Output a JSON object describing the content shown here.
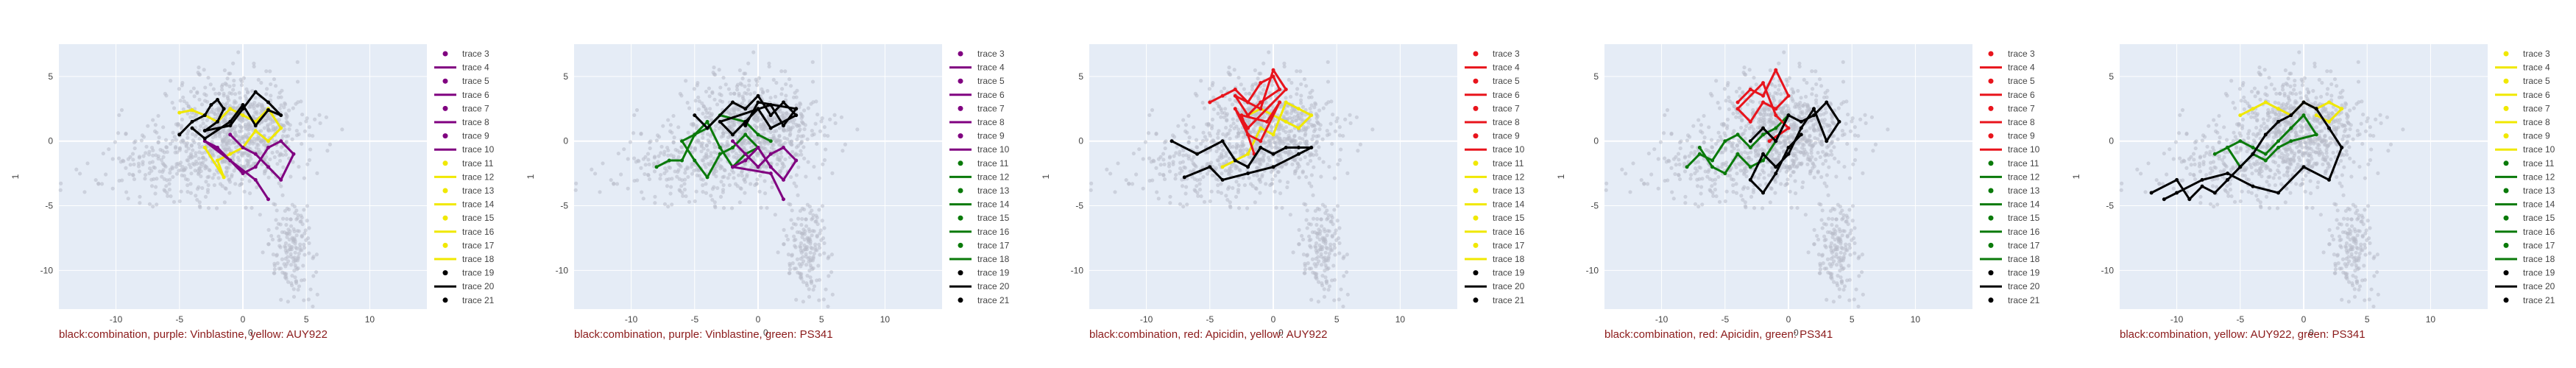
{
  "colors": {
    "combination": "#000000",
    "purple": "#800080",
    "yellow": "#f0e800",
    "green": "#0a7a0a",
    "red": "#e8141c",
    "orange": "#f4a020",
    "background_points": "#b8bcc8",
    "plot_bg": "#e5ecf6"
  },
  "shared": {
    "ylabel": "1",
    "xlabel": "0",
    "xticks": [
      -10,
      -5,
      0,
      5,
      10
    ],
    "yticks": [
      5,
      0,
      -5,
      -10
    ],
    "xlim": [
      -14.5,
      14.5
    ],
    "ylim": [
      -13,
      7.5
    ],
    "legend_entries": [
      {
        "name": "trace 3",
        "kind": "marker"
      },
      {
        "name": "trace 4",
        "kind": "line"
      },
      {
        "name": "trace 5",
        "kind": "marker"
      },
      {
        "name": "trace 6",
        "kind": "line"
      },
      {
        "name": "trace 7",
        "kind": "marker"
      },
      {
        "name": "trace 8",
        "kind": "line"
      },
      {
        "name": "trace 9",
        "kind": "marker"
      },
      {
        "name": "trace 10",
        "kind": "line"
      },
      {
        "name": "trace 11",
        "kind": "marker"
      },
      {
        "name": "trace 12",
        "kind": "line"
      },
      {
        "name": "trace 13",
        "kind": "marker"
      },
      {
        "name": "trace 14",
        "kind": "line"
      },
      {
        "name": "trace 15",
        "kind": "marker"
      },
      {
        "name": "trace 16",
        "kind": "line"
      },
      {
        "name": "trace 17",
        "kind": "marker"
      },
      {
        "name": "trace 18",
        "kind": "line"
      },
      {
        "name": "trace 19",
        "kind": "marker"
      },
      {
        "name": "trace 20",
        "kind": "line"
      },
      {
        "name": "trace 21",
        "kind": "marker"
      }
    ]
  },
  "chart_data": [
    {
      "type": "scatter",
      "caption": "black:combination, purple: Vinblastine, yellow: AUY922",
      "legend_colors": [
        "#800080",
        "#800080",
        "#800080",
        "#800080",
        "#800080",
        "#800080",
        "#800080",
        "#800080",
        "#f0e800",
        "#f0e800",
        "#f0e800",
        "#f0e800",
        "#f0e800",
        "#f0e800",
        "#f0e800",
        "#f0e800",
        "#000000",
        "#000000",
        "#000000"
      ],
      "series": [
        {
          "name": "combination",
          "color": "#000000",
          "x": [
            -5,
            -4,
            -3,
            -2.5,
            -2,
            -1.5,
            -2,
            -3,
            -1,
            0,
            1,
            2,
            3,
            2,
            1,
            0,
            -1,
            -3,
            -4
          ],
          "y": [
            0.5,
            1.5,
            2,
            2.8,
            3.2,
            2.5,
            1.5,
            0.8,
            1.2,
            2.5,
            3.8,
            3,
            2,
            2.4,
            1.2,
            2.8,
            1.5,
            0.2,
            1
          ]
        },
        {
          "name": "Vinblastine",
          "color": "#800080",
          "x": [
            -1,
            0,
            1,
            2,
            3,
            4,
            3,
            2,
            1,
            0,
            -1,
            -2,
            -3,
            1,
            2
          ],
          "y": [
            0.5,
            -0.5,
            -1,
            -2,
            -3,
            -1,
            0,
            -0.5,
            -2,
            -2.5,
            -1.5,
            -0.5,
            0,
            -3,
            -4.5
          ]
        },
        {
          "name": "AUY922",
          "color": "#f0e800",
          "x": [
            -5,
            -4,
            -3,
            -2,
            -1,
            0,
            1,
            2,
            3,
            2,
            1,
            0,
            -1,
            -2,
            -1.5,
            -3
          ],
          "y": [
            2.2,
            2.4,
            2,
            1.5,
            2.5,
            2,
            1.5,
            2.5,
            1,
            0,
            0.8,
            -0.5,
            -1,
            -1.5,
            -2.8,
            -0.5
          ]
        }
      ]
    },
    {
      "type": "scatter",
      "caption": "black:combination, purple: Vinblastine, green: PS341",
      "legend_colors": [
        "#800080",
        "#800080",
        "#800080",
        "#800080",
        "#800080",
        "#800080",
        "#800080",
        "#800080",
        "#0a7a0a",
        "#0a7a0a",
        "#0a7a0a",
        "#0a7a0a",
        "#0a7a0a",
        "#0a7a0a",
        "#0a7a0a",
        "#0a7a0a",
        "#000000",
        "#000000",
        "#000000"
      ],
      "series": [
        {
          "name": "combination",
          "color": "#000000",
          "x": [
            -5,
            -4,
            -2,
            -1,
            0,
            1,
            2,
            3,
            1,
            0,
            -1,
            -2,
            -3,
            1,
            2,
            3,
            0,
            -1
          ],
          "y": [
            2,
            1,
            3,
            2.5,
            3.5,
            2,
            3,
            2,
            1,
            2.5,
            1.5,
            0.5,
            1.5,
            2.8,
            1.2,
            2.5,
            3,
            1.2
          ]
        },
        {
          "name": "Vinblastine",
          "color": "#800080",
          "x": [
            -2,
            -1,
            0,
            1,
            2,
            3,
            2,
            1,
            0,
            -1,
            -2,
            1,
            2
          ],
          "y": [
            0,
            -1,
            -2,
            -1,
            -0.5,
            -1.5,
            -3,
            -2,
            -0.5,
            -1.5,
            -2,
            -2.5,
            -4.5
          ]
        },
        {
          "name": "PS341",
          "color": "#0a7a0a",
          "x": [
            -8,
            -7,
            -6,
            -5,
            -4,
            -3,
            -2,
            -1,
            0,
            -1,
            -2,
            -3,
            -4,
            -5,
            -6,
            -4,
            -3,
            -1,
            0,
            1
          ],
          "y": [
            -2,
            -1.5,
            -1.5,
            0.5,
            1.5,
            -0.5,
            -2,
            -1,
            -0.5,
            0.5,
            -0.5,
            -1,
            -2.8,
            -1.5,
            0,
            1,
            2,
            1.5,
            0.5,
            0
          ]
        }
      ]
    },
    {
      "type": "scatter",
      "caption": "black:combination, red: Apicidin, yellow: AUY922",
      "legend_colors": [
        "#e8141c",
        "#e8141c",
        "#e8141c",
        "#e8141c",
        "#e8141c",
        "#e8141c",
        "#e8141c",
        "#e8141c",
        "#f0e800",
        "#f0e800",
        "#f0e800",
        "#f0e800",
        "#f0e800",
        "#f0e800",
        "#f0e800",
        "#f0e800",
        "#000000",
        "#000000",
        "#000000"
      ],
      "series": [
        {
          "name": "combination",
          "color": "#000000",
          "x": [
            -8,
            -6,
            -4,
            -3,
            -2,
            -1,
            0,
            1,
            2,
            3,
            2,
            0,
            -2,
            -4,
            -5,
            -7
          ],
          "y": [
            0,
            -1,
            0,
            -1.5,
            -2,
            -0.5,
            -1,
            -0.5,
            -0.5,
            -0.5,
            -1,
            -2,
            -2.5,
            -3,
            -2,
            -2.8
          ]
        },
        {
          "name": "Apicidin",
          "color": "#e8141c",
          "x": [
            -5,
            -4,
            -3,
            -2,
            -1,
            0,
            0.5,
            -1,
            -2,
            -3,
            -1,
            0,
            1,
            -2,
            -3,
            -2,
            -1,
            0.5,
            -0.5,
            -2.5,
            -1.5
          ],
          "y": [
            3,
            3.5,
            4,
            3,
            4.5,
            5,
            4,
            3,
            2,
            3.5,
            2.5,
            5.5,
            4,
            1,
            2.5,
            0.5,
            0,
            3,
            1.5,
            2,
            -1
          ]
        },
        {
          "name": "AUY922",
          "color": "#f0e800",
          "x": [
            -2,
            -1,
            0,
            1,
            2,
            3,
            2,
            1,
            0,
            -1,
            -2,
            -4
          ],
          "y": [
            2,
            2.5,
            2,
            1.5,
            1,
            2,
            2.5,
            3,
            0.5,
            1,
            -1,
            -2
          ]
        }
      ]
    },
    {
      "type": "scatter",
      "caption": "black:combination, red: Apicidin, green: PS341",
      "legend_colors": [
        "#e8141c",
        "#e8141c",
        "#e8141c",
        "#e8141c",
        "#e8141c",
        "#e8141c",
        "#e8141c",
        "#e8141c",
        "#0a7a0a",
        "#0a7a0a",
        "#0a7a0a",
        "#0a7a0a",
        "#0a7a0a",
        "#0a7a0a",
        "#0a7a0a",
        "#0a7a0a",
        "#000000",
        "#000000",
        "#000000"
      ],
      "series": [
        {
          "name": "combination",
          "color": "#000000",
          "x": [
            -3,
            -2,
            -1,
            0,
            1,
            2,
            3,
            4,
            3,
            2,
            1,
            0,
            -1,
            -2,
            -3,
            -2,
            -1,
            0,
            1
          ],
          "y": [
            0,
            1,
            0,
            2,
            1.5,
            2,
            3,
            1.5,
            0,
            2.5,
            1,
            -1,
            -2,
            -1,
            -3,
            -4,
            -2.5,
            -0.5,
            0.5
          ]
        },
        {
          "name": "Apicidin",
          "color": "#e8141c",
          "x": [
            -4,
            -3,
            -2,
            -1,
            0,
            -1,
            -2,
            -3,
            -4,
            -2,
            -1,
            0,
            -1.5
          ],
          "y": [
            3,
            4,
            3.5,
            5.5,
            3.5,
            2.5,
            3,
            1.5,
            2.5,
            4.5,
            2,
            1,
            0
          ]
        },
        {
          "name": "PS341",
          "color": "#0a7a0a",
          "x": [
            -8,
            -7,
            -6,
            -5,
            -4,
            -3,
            -2,
            -1,
            0,
            -1,
            -2,
            -3,
            -4,
            -5,
            -6,
            -7
          ],
          "y": [
            -2,
            -1,
            -1.5,
            0,
            0.5,
            -0.5,
            0.5,
            1,
            2,
            0,
            -1.5,
            -2,
            -1,
            -2.5,
            -2,
            -0.5
          ]
        }
      ]
    },
    {
      "type": "scatter",
      "caption": "black:combination, yellow: AUY922, green: PS341",
      "legend_colors": [
        "#f0e800",
        "#f0e800",
        "#f0e800",
        "#f0e800",
        "#f0e800",
        "#f0e800",
        "#f0e800",
        "#f0e800",
        "#0a7a0a",
        "#0a7a0a",
        "#0a7a0a",
        "#0a7a0a",
        "#0a7a0a",
        "#0a7a0a",
        "#0a7a0a",
        "#0a7a0a",
        "#000000",
        "#000000",
        "#000000"
      ],
      "series": [
        {
          "name": "combination",
          "color": "#000000",
          "x": [
            -12,
            -10,
            -9,
            -8,
            -7,
            -6,
            -5,
            -4,
            -3,
            -2,
            -1,
            0,
            1,
            2,
            3,
            2,
            0,
            -2,
            -4,
            -6,
            -8,
            -10,
            -11
          ],
          "y": [
            -4,
            -3,
            -4.5,
            -3.5,
            -4,
            -3,
            -2,
            -1,
            0.5,
            1.5,
            2,
            3,
            2.5,
            1,
            -0.5,
            -3,
            -2,
            -4,
            -3.5,
            -2.5,
            -3,
            -4,
            -4.5
          ]
        },
        {
          "name": "AUY922",
          "color": "#f0e800",
          "x": [
            -5,
            -4,
            -3,
            -2,
            -1,
            0,
            1,
            2,
            3,
            2,
            1
          ],
          "y": [
            2,
            2.5,
            3,
            2.5,
            2,
            3,
            2.5,
            3,
            2.5,
            1.5,
            2
          ]
        },
        {
          "name": "PS341",
          "color": "#0a7a0a",
          "x": [
            -7,
            -6,
            -5,
            -4,
            -3,
            -2,
            -1,
            0,
            1,
            -1,
            -2,
            -3,
            -4,
            -5,
            -6
          ],
          "y": [
            -1,
            -0.5,
            0,
            -0.5,
            -1,
            0,
            1,
            2,
            0.5,
            0,
            -0.5,
            -1.5,
            -1,
            -2,
            -0.5
          ]
        }
      ]
    }
  ]
}
